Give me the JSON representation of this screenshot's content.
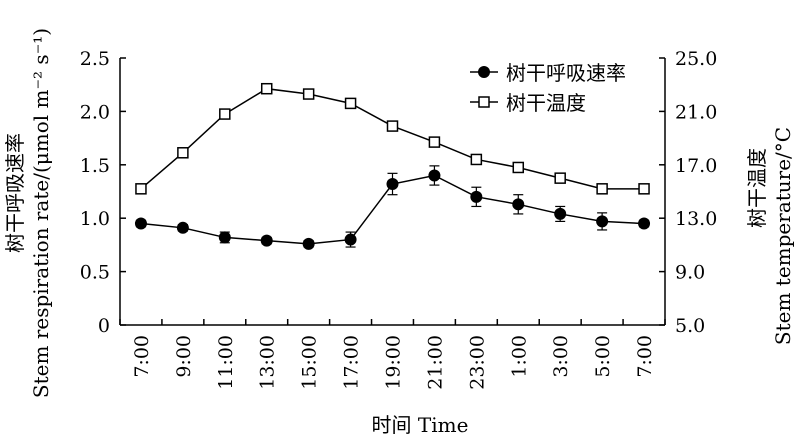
{
  "chart_data": {
    "type": "line",
    "categories": [
      "7:00",
      "9:00",
      "11:00",
      "13:00",
      "15:00",
      "17:00",
      "19:00",
      "21:00",
      "23:00",
      "1:00",
      "3:00",
      "5:00",
      "7:00"
    ],
    "xlabel": "时间 Time",
    "ylabel_left": "Stem respiration rate/(μmol m⁻² s⁻¹)",
    "ylabel_left_cn": "树干呼吸速率",
    "ylabel_right": "Stem temperature/°C",
    "ylabel_right_cn": "树干温度",
    "yleft_lim": [
      0,
      2.5
    ],
    "yleft_ticks": [
      "0",
      "0.5",
      "1.0",
      "1.5",
      "2.0",
      "2.5"
    ],
    "yright_lim": [
      5.0,
      25.0
    ],
    "yright_ticks": [
      "5.0",
      "9.0",
      "13.0",
      "17.0",
      "21.0",
      "25.0"
    ],
    "legend_position": "top-right",
    "grid": false,
    "series": [
      {
        "name": "树干呼吸速率",
        "axis": "left",
        "marker": "filled-circle",
        "values": [
          0.95,
          0.91,
          0.82,
          0.79,
          0.76,
          0.8,
          1.32,
          1.4,
          1.2,
          1.13,
          1.04,
          0.97,
          0.95
        ],
        "errors": [
          0.03,
          0.03,
          0.05,
          0.03,
          0.03,
          0.07,
          0.1,
          0.09,
          0.09,
          0.09,
          0.07,
          0.08,
          0.03
        ]
      },
      {
        "name": "树干温度",
        "axis": "right",
        "marker": "open-square",
        "values": [
          15.2,
          17.9,
          20.8,
          22.7,
          22.3,
          21.6,
          19.9,
          18.7,
          17.4,
          16.8,
          16.0,
          15.2,
          15.2
        ]
      }
    ]
  }
}
